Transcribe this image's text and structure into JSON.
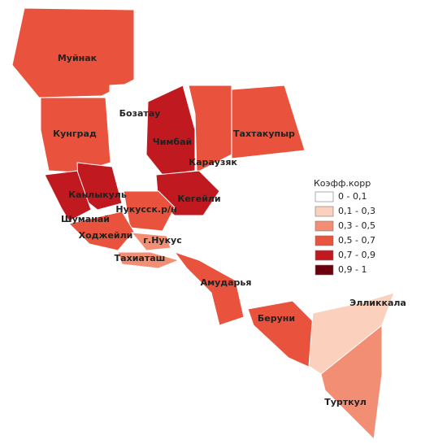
{
  "map": {
    "legend": {
      "title": "Коэфф.корр",
      "items": [
        {
          "label": "0 - 0,1",
          "color": "#ffffff"
        },
        {
          "label": "0,1 - 0,3",
          "color": "#fbd0bc"
        },
        {
          "label": "0,3 - 0,5",
          "color": "#f28e74"
        },
        {
          "label": "0,5 - 0,7",
          "color": "#e9533d"
        },
        {
          "label": "0,7 - 0,9",
          "color": "#c11920"
        },
        {
          "label": "0,9 - 1",
          "color": "#6b000c"
        }
      ]
    },
    "regions": [
      {
        "name": "Муйнак",
        "color": "#e9533d"
      },
      {
        "name": "Бозатау",
        "color": "#ffffff"
      },
      {
        "name": "Кунград",
        "color": "#e9533d"
      },
      {
        "name": "Чимбай",
        "color": "#c11920"
      },
      {
        "name": "Караузяк",
        "color": "#e9533d"
      },
      {
        "name": "Тахтакупыр",
        "color": "#e9533d"
      },
      {
        "name": "Кегейли",
        "color": "#c11920"
      },
      {
        "name": "Канлыкуль",
        "color": "#c11920"
      },
      {
        "name": "Шуманай",
        "color": "#c11920"
      },
      {
        "name": "Нукусск.р/н",
        "color": "#e9533d"
      },
      {
        "name": "Ходжейли",
        "color": "#e9533d"
      },
      {
        "name": "г.Нукус",
        "color": "#f28e74"
      },
      {
        "name": "Тахиаташ",
        "color": "#f28e74"
      },
      {
        "name": "Амударья",
        "color": "#e9533d"
      },
      {
        "name": "Беруни",
        "color": "#e9533d"
      },
      {
        "name": "Элликкала",
        "color": "#fbd0bc"
      },
      {
        "name": "Турткул",
        "color": "#f28e74"
      }
    ]
  }
}
